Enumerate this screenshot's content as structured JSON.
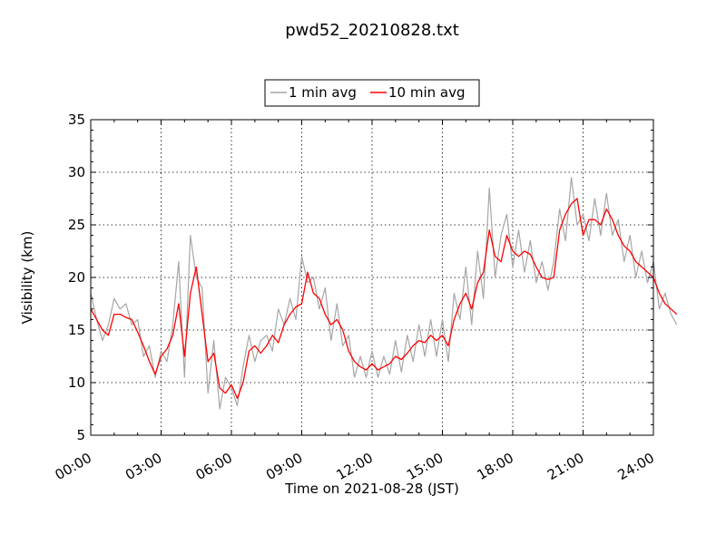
{
  "chart_data": {
    "type": "line",
    "title": "pwd52_20210828.txt",
    "xlabel": "Time on 2021-08-28 (JST)",
    "ylabel": "Visibility (km)",
    "xlim": [
      "00:00",
      "24:00"
    ],
    "ylim": [
      5,
      35
    ],
    "x_tick_labels": [
      "00:00",
      "03:00",
      "06:00",
      "09:00",
      "12:00",
      "15:00",
      "18:00",
      "21:00",
      "24:00"
    ],
    "y_tick_labels": [
      "5",
      "10",
      "15",
      "20",
      "25",
      "30",
      "35"
    ],
    "grid": true,
    "legend": {
      "position": "top-center",
      "entries": [
        "1 min avg",
        "10 min avg"
      ]
    },
    "colors": {
      "one_min": "#a6a6a6",
      "ten_min": "#ff0000"
    },
    "time_step_hours": 0.25,
    "series": [
      {
        "name": "10 min avg",
        "note_unit": "km",
        "values": [
          17.0,
          16.0,
          15.0,
          14.5,
          16.5,
          16.5,
          16.2,
          16.0,
          14.8,
          13.5,
          12.0,
          10.8,
          12.5,
          13.2,
          14.5,
          17.5,
          12.5,
          18.5,
          21.0,
          16.5,
          12.0,
          12.8,
          9.5,
          9.0,
          9.8,
          8.5,
          10.0,
          13.0,
          13.5,
          12.8,
          13.5,
          14.5,
          13.8,
          15.5,
          16.5,
          17.2,
          17.5,
          20.5,
          18.5,
          18.0,
          16.5,
          15.5,
          16.0,
          15.0,
          13.0,
          12.0,
          11.5,
          11.2,
          11.8,
          11.2,
          11.5,
          11.8,
          12.5,
          12.2,
          12.8,
          13.5,
          14.0,
          13.8,
          14.5,
          14.0,
          14.5,
          13.5,
          16.0,
          17.5,
          18.5,
          17.0,
          19.5,
          20.5,
          24.5,
          22.0,
          21.5,
          24.0,
          22.5,
          22.0,
          22.5,
          22.2,
          21.0,
          20.0,
          19.8,
          20.0,
          24.5,
          26.0,
          27.0,
          27.5,
          24.0,
          25.5,
          25.5,
          25.0,
          26.5,
          25.5,
          24.0,
          23.0,
          22.5,
          21.5,
          21.0,
          20.5,
          20.0,
          18.5,
          17.5,
          17.0,
          16.5
        ]
      },
      {
        "name": "1 min avg",
        "note_unit": "km",
        "values": [
          18.5,
          16.0,
          14.0,
          15.5,
          18.0,
          17.0,
          17.5,
          15.5,
          16.0,
          12.5,
          13.5,
          10.5,
          13.0,
          12.0,
          15.5,
          21.5,
          10.5,
          24.0,
          20.0,
          19.0,
          9.0,
          14.0,
          7.5,
          10.5,
          9.5,
          7.8,
          11.5,
          14.5,
          12.0,
          14.0,
          14.5,
          13.0,
          17.0,
          15.5,
          18.0,
          16.0,
          22.0,
          19.5,
          20.0,
          17.0,
          19.0,
          14.0,
          17.5,
          13.5,
          14.5,
          10.5,
          12.5,
          10.5,
          13.0,
          10.5,
          12.5,
          10.8,
          14.0,
          11.0,
          14.5,
          12.0,
          15.5,
          12.5,
          16.0,
          12.5,
          16.0,
          12.0,
          18.5,
          16.0,
          21.0,
          15.5,
          22.5,
          18.0,
          28.5,
          20.0,
          24.0,
          26.0,
          21.0,
          24.5,
          20.5,
          23.5,
          19.5,
          21.5,
          18.8,
          21.5,
          26.5,
          23.5,
          29.5,
          25.0,
          26.0,
          23.5,
          27.5,
          24.0,
          28.0,
          24.0,
          25.5,
          21.5,
          24.0,
          20.0,
          22.5,
          19.5,
          21.5,
          17.0,
          18.5,
          16.5,
          15.5
        ]
      }
    ]
  }
}
